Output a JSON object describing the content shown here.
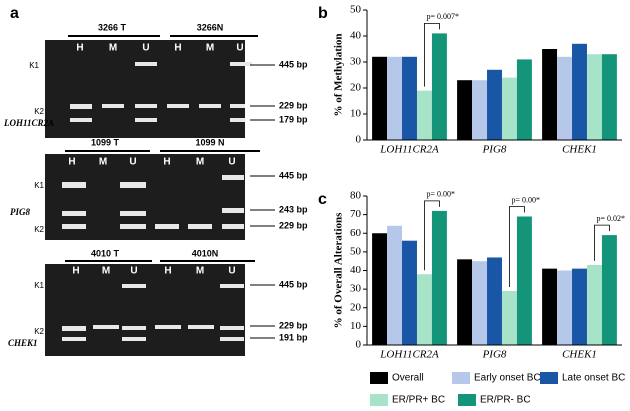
{
  "panel_a": {
    "label": "a",
    "blocks": [
      {
        "samples": [
          "3266 T",
          "3266N"
        ],
        "lanes": [
          "H",
          "M",
          "U",
          "H",
          "M",
          "U"
        ],
        "left_labels": [
          "K1",
          "K2"
        ],
        "gene": "LOH11CR2A",
        "bp": [
          "445 bp",
          "229 bp",
          "179 bp"
        ]
      },
      {
        "samples": [
          "1099 T",
          "1099 N"
        ],
        "lanes": [
          "H",
          "M",
          "U",
          "H",
          "M",
          "U"
        ],
        "left_labels": [
          "K1",
          "K2"
        ],
        "gene": "PIG8",
        "bp": [
          "445 bp",
          "243 bp",
          "229 bp"
        ]
      },
      {
        "samples": [
          "4010 T",
          "4010N"
        ],
        "lanes": [
          "H",
          "M",
          "U",
          "H",
          "M",
          "U"
        ],
        "left_labels": [
          "K1",
          "K2"
        ],
        "gene": "CHEK1",
        "bp": [
          "445 bp",
          "229 bp",
          "191 bp"
        ]
      }
    ]
  },
  "chart_data": [
    {
      "type": "bar",
      "panel_label": "b",
      "y_label": "% of Methylation",
      "categories": [
        "LOH11CR2A",
        "PIG8",
        "CHEK1"
      ],
      "series": [
        {
          "color": "#000000",
          "values": [
            32,
            23,
            35
          ]
        },
        {
          "color": "#b6c8ea",
          "values": [
            32,
            23,
            32
          ]
        },
        {
          "color": "#1a56a6",
          "values": [
            32,
            27,
            37
          ]
        },
        {
          "color": "#a7e3c9",
          "values": [
            19,
            24,
            33
          ]
        },
        {
          "color": "#14957a",
          "values": [
            41,
            31,
            33
          ]
        }
      ],
      "ylim": [
        0,
        50
      ],
      "yticks": [
        0,
        10,
        20,
        30,
        40,
        50
      ],
      "annotations": [
        "p= 0.007*"
      ]
    },
    {
      "type": "bar",
      "panel_label": "c",
      "y_label": "% of Overall Alterations",
      "categories": [
        "LOH11CR2A",
        "PIG8",
        "CHEK1"
      ],
      "series": [
        {
          "name": "Overall",
          "color": "#000000",
          "values": [
            60,
            46,
            41
          ]
        },
        {
          "name": "Early onset BC",
          "color": "#b6c8ea",
          "values": [
            64,
            45,
            40
          ]
        },
        {
          "name": "Late onset BC",
          "color": "#1a56a6",
          "values": [
            56,
            47,
            41
          ]
        },
        {
          "name": "ER/PR+ BC",
          "color": "#a7e3c9",
          "values": [
            38,
            29,
            43
          ]
        },
        {
          "name": "ER/PR- BC",
          "color": "#14957a",
          "values": [
            72,
            69,
            59
          ]
        }
      ],
      "ylim": [
        0,
        80
      ],
      "yticks": [
        0,
        10,
        20,
        30,
        40,
        50,
        60,
        70,
        80
      ],
      "annotations": [
        "p= 0.00*",
        "p= 0.00*",
        "p= 0.02*"
      ],
      "legend": "bottom"
    }
  ]
}
